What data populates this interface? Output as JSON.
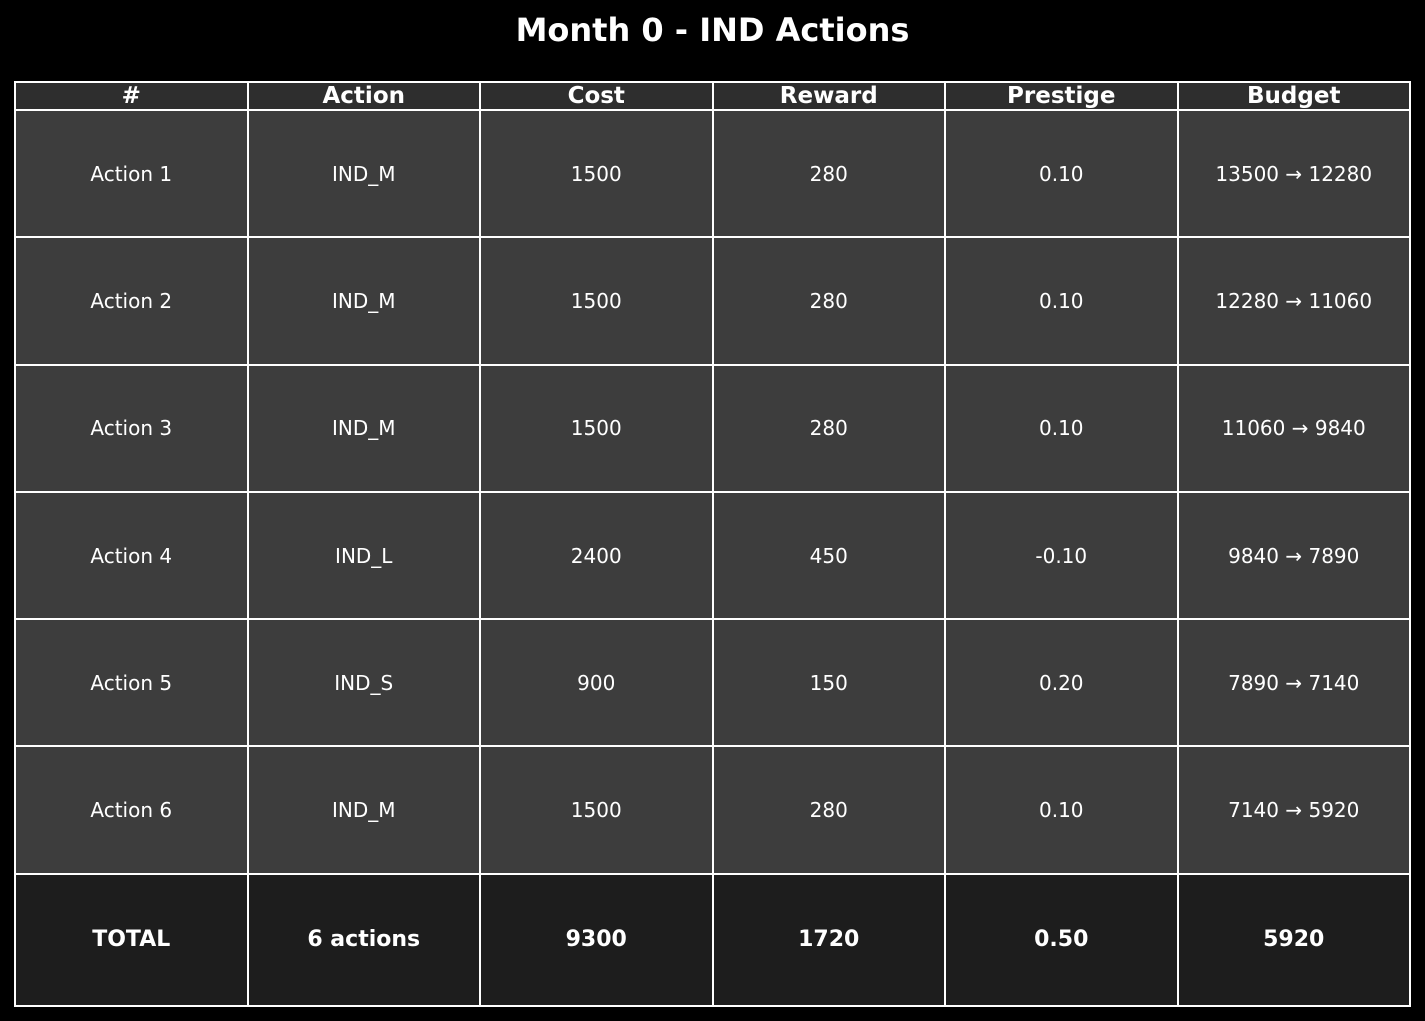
{
  "chart_data": {
    "type": "table",
    "title": "Month 0 - IND Actions",
    "columns": [
      "#",
      "Action",
      "Cost",
      "Reward",
      "Prestige",
      "Budget"
    ],
    "rows": [
      [
        "Action 1",
        "IND_M",
        "1500",
        "280",
        "0.10",
        "13500 → 12280"
      ],
      [
        "Action 2",
        "IND_M",
        "1500",
        "280",
        "0.10",
        "12280 → 11060"
      ],
      [
        "Action 3",
        "IND_M",
        "1500",
        "280",
        "0.10",
        "11060 → 9840"
      ],
      [
        "Action 4",
        "IND_L",
        "2400",
        "450",
        "-0.10",
        "9840 → 7890"
      ],
      [
        "Action 5",
        "IND_S",
        "900",
        "150",
        "0.20",
        "7890 → 7140"
      ],
      [
        "Action 6",
        "IND_M",
        "1500",
        "280",
        "0.10",
        "7140 → 5920"
      ]
    ],
    "total": [
      "TOTAL",
      "6 actions",
      "9300",
      "1720",
      "0.50",
      "5920"
    ]
  },
  "colors": {
    "background": "#000000",
    "header_fill": "#2e2e2e",
    "row_fill": "#3d3d3d",
    "total_fill": "#1d1d1d",
    "border": "#ffffff",
    "text": "#ffffff"
  }
}
